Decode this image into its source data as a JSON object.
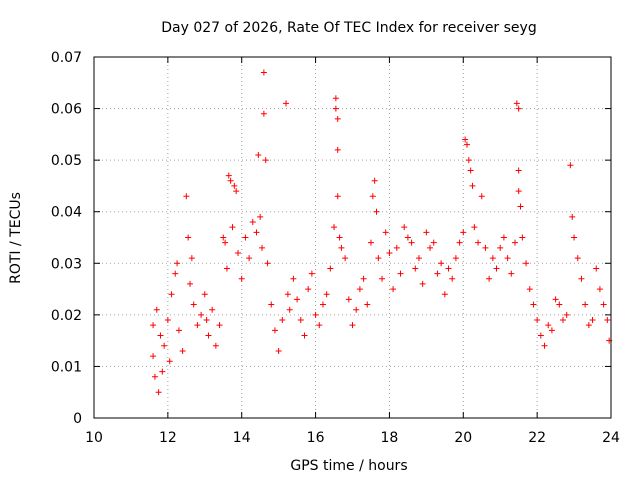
{
  "chart_data": {
    "type": "scatter",
    "title": "Day 027 of 2026, Rate Of TEC Index for receiver seyg",
    "xlabel": "GPS time / hours",
    "ylabel": "ROTI / TECUs",
    "xlim": [
      10,
      24
    ],
    "ylim": [
      0,
      0.07
    ],
    "x_ticks": [
      10,
      12,
      14,
      16,
      18,
      20,
      22,
      24
    ],
    "x_tick_labels": [
      "10",
      "12",
      "14",
      "16",
      "18",
      "20",
      "22",
      "24"
    ],
    "y_ticks": [
      0,
      0.01,
      0.02,
      0.03,
      0.04,
      0.05,
      0.06,
      0.07
    ],
    "y_tick_labels": [
      "0",
      "0.01",
      "0.02",
      "0.03",
      "0.04",
      "0.05",
      "0.06",
      "0.07"
    ],
    "grid": true,
    "legend": "none",
    "marker": "plus",
    "color": "#ff0000",
    "series": [
      {
        "points": [
          [
            11.6,
            0.018
          ],
          [
            11.6,
            0.012
          ],
          [
            11.65,
            0.008
          ],
          [
            11.7,
            0.021
          ],
          [
            11.75,
            0.005
          ],
          [
            11.8,
            0.016
          ],
          [
            11.85,
            0.009
          ],
          [
            11.9,
            0.014
          ],
          [
            12.0,
            0.019
          ],
          [
            12.05,
            0.011
          ],
          [
            12.1,
            0.024
          ],
          [
            12.2,
            0.028
          ],
          [
            12.25,
            0.03
          ],
          [
            12.3,
            0.017
          ],
          [
            12.4,
            0.013
          ],
          [
            12.5,
            0.043
          ],
          [
            12.55,
            0.035
          ],
          [
            12.6,
            0.026
          ],
          [
            12.65,
            0.031
          ],
          [
            12.7,
            0.022
          ],
          [
            12.8,
            0.018
          ],
          [
            12.9,
            0.02
          ],
          [
            13.0,
            0.024
          ],
          [
            13.05,
            0.019
          ],
          [
            13.1,
            0.016
          ],
          [
            13.2,
            0.021
          ],
          [
            13.3,
            0.014
          ],
          [
            13.4,
            0.018
          ],
          [
            13.5,
            0.035
          ],
          [
            13.55,
            0.034
          ],
          [
            13.6,
            0.029
          ],
          [
            13.65,
            0.047
          ],
          [
            13.7,
            0.046
          ],
          [
            13.75,
            0.037
          ],
          [
            13.8,
            0.045
          ],
          [
            13.85,
            0.044
          ],
          [
            13.9,
            0.032
          ],
          [
            14.0,
            0.027
          ],
          [
            14.1,
            0.035
          ],
          [
            14.2,
            0.031
          ],
          [
            14.3,
            0.038
          ],
          [
            14.4,
            0.036
          ],
          [
            14.45,
            0.051
          ],
          [
            14.5,
            0.039
          ],
          [
            14.55,
            0.033
          ],
          [
            14.6,
            0.067
          ],
          [
            14.6,
            0.059
          ],
          [
            14.65,
            0.05
          ],
          [
            14.7,
            0.03
          ],
          [
            14.8,
            0.022
          ],
          [
            14.9,
            0.017
          ],
          [
            15.0,
            0.013
          ],
          [
            15.1,
            0.019
          ],
          [
            15.2,
            0.061
          ],
          [
            15.25,
            0.024
          ],
          [
            15.3,
            0.021
          ],
          [
            15.4,
            0.027
          ],
          [
            15.5,
            0.023
          ],
          [
            15.6,
            0.019
          ],
          [
            15.7,
            0.016
          ],
          [
            15.8,
            0.025
          ],
          [
            15.9,
            0.028
          ],
          [
            16.0,
            0.02
          ],
          [
            16.1,
            0.018
          ],
          [
            16.2,
            0.022
          ],
          [
            16.3,
            0.024
          ],
          [
            16.4,
            0.029
          ],
          [
            16.5,
            0.037
          ],
          [
            16.55,
            0.062
          ],
          [
            16.55,
            0.06
          ],
          [
            16.6,
            0.058
          ],
          [
            16.6,
            0.052
          ],
          [
            16.6,
            0.043
          ],
          [
            16.65,
            0.035
          ],
          [
            16.7,
            0.033
          ],
          [
            16.8,
            0.031
          ],
          [
            16.9,
            0.023
          ],
          [
            17.0,
            0.018
          ],
          [
            17.1,
            0.021
          ],
          [
            17.2,
            0.025
          ],
          [
            17.3,
            0.027
          ],
          [
            17.4,
            0.022
          ],
          [
            17.5,
            0.034
          ],
          [
            17.55,
            0.043
          ],
          [
            17.6,
            0.046
          ],
          [
            17.65,
            0.04
          ],
          [
            17.7,
            0.031
          ],
          [
            17.8,
            0.027
          ],
          [
            17.9,
            0.036
          ],
          [
            18.0,
            0.032
          ],
          [
            18.1,
            0.025
          ],
          [
            18.2,
            0.033
          ],
          [
            18.3,
            0.028
          ],
          [
            18.4,
            0.037
          ],
          [
            18.5,
            0.035
          ],
          [
            18.6,
            0.034
          ],
          [
            18.7,
            0.029
          ],
          [
            18.8,
            0.031
          ],
          [
            18.9,
            0.026
          ],
          [
            19.0,
            0.036
          ],
          [
            19.1,
            0.033
          ],
          [
            19.2,
            0.034
          ],
          [
            19.3,
            0.028
          ],
          [
            19.4,
            0.03
          ],
          [
            19.5,
            0.024
          ],
          [
            19.6,
            0.029
          ],
          [
            19.7,
            0.027
          ],
          [
            19.8,
            0.031
          ],
          [
            19.9,
            0.034
          ],
          [
            20.0,
            0.036
          ],
          [
            20.05,
            0.054
          ],
          [
            20.1,
            0.053
          ],
          [
            20.15,
            0.05
          ],
          [
            20.2,
            0.048
          ],
          [
            20.25,
            0.045
          ],
          [
            20.3,
            0.037
          ],
          [
            20.4,
            0.034
          ],
          [
            20.5,
            0.043
          ],
          [
            20.6,
            0.033
          ],
          [
            20.7,
            0.027
          ],
          [
            20.8,
            0.031
          ],
          [
            20.9,
            0.029
          ],
          [
            21.0,
            0.033
          ],
          [
            21.1,
            0.035
          ],
          [
            21.2,
            0.031
          ],
          [
            21.3,
            0.028
          ],
          [
            21.4,
            0.034
          ],
          [
            21.45,
            0.061
          ],
          [
            21.5,
            0.06
          ],
          [
            21.5,
            0.048
          ],
          [
            21.5,
            0.044
          ],
          [
            21.55,
            0.041
          ],
          [
            21.6,
            0.035
          ],
          [
            21.7,
            0.03
          ],
          [
            21.8,
            0.025
          ],
          [
            21.9,
            0.022
          ],
          [
            22.0,
            0.019
          ],
          [
            22.1,
            0.016
          ],
          [
            22.2,
            0.014
          ],
          [
            22.3,
            0.018
          ],
          [
            22.4,
            0.017
          ],
          [
            22.5,
            0.023
          ],
          [
            22.6,
            0.022
          ],
          [
            22.7,
            0.019
          ],
          [
            22.8,
            0.02
          ],
          [
            22.9,
            0.049
          ],
          [
            22.95,
            0.039
          ],
          [
            23.0,
            0.035
          ],
          [
            23.1,
            0.031
          ],
          [
            23.2,
            0.027
          ],
          [
            23.3,
            0.022
          ],
          [
            23.4,
            0.018
          ],
          [
            23.5,
            0.019
          ],
          [
            23.6,
            0.029
          ],
          [
            23.7,
            0.025
          ],
          [
            23.8,
            0.022
          ],
          [
            23.9,
            0.019
          ],
          [
            23.95,
            0.015
          ]
        ]
      }
    ]
  }
}
